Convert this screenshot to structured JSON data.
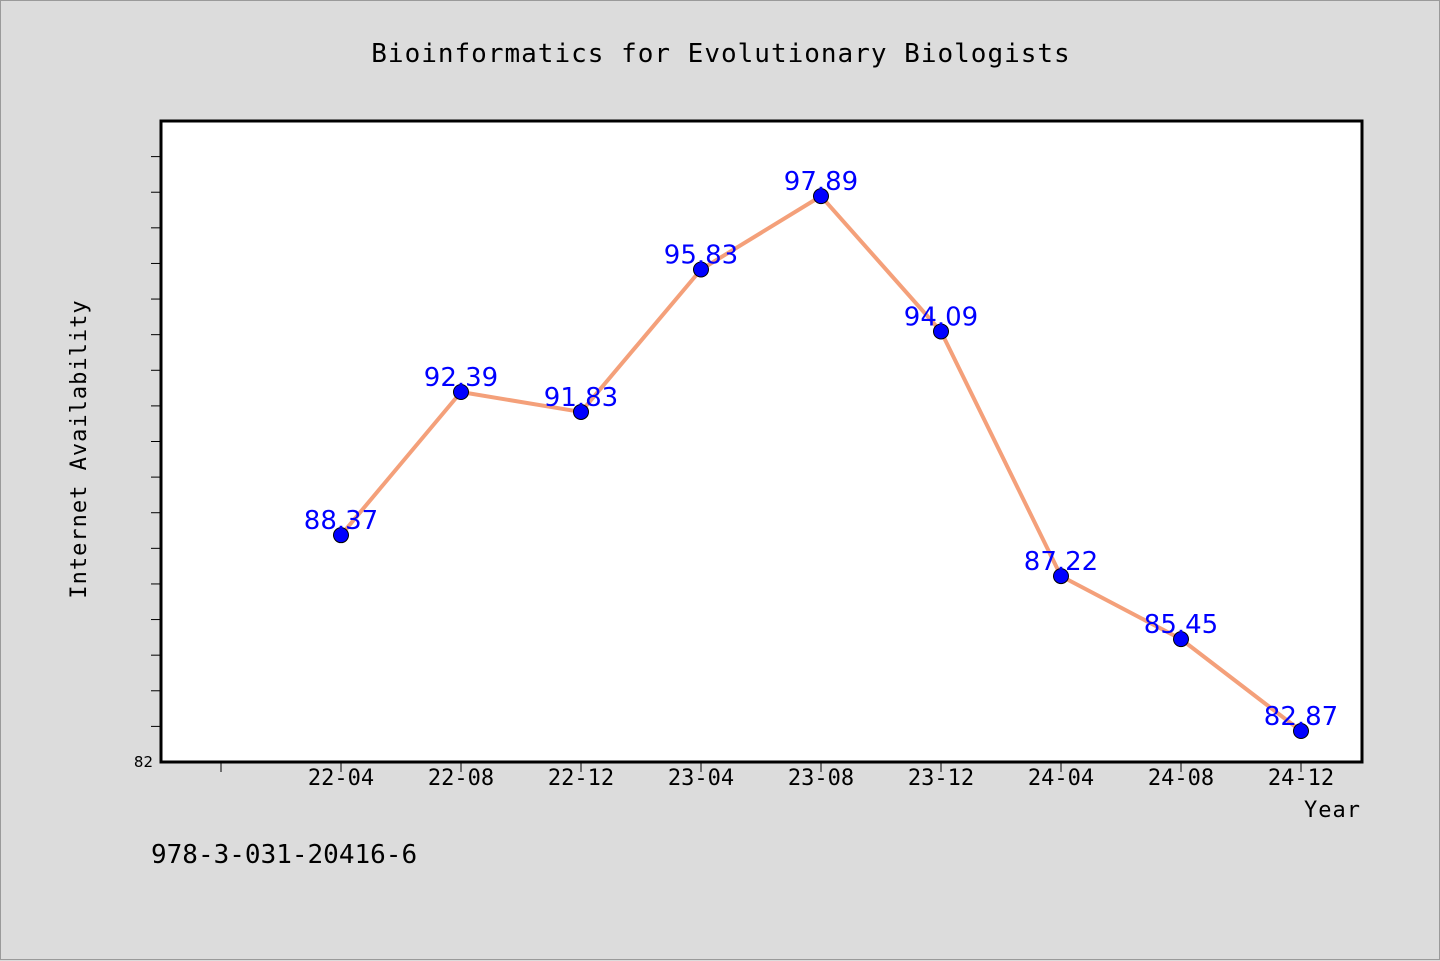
{
  "chart_data": {
    "type": "line",
    "title": "Bioinformatics for Evolutionary Biologists",
    "xlabel": "Year",
    "ylabel": "Internet Availability",
    "categories": [
      "22-04",
      "22-08",
      "22-12",
      "23-04",
      "23-08",
      "23-12",
      "24-04",
      "24-08",
      "24-12"
    ],
    "values": [
      88.37,
      92.39,
      91.83,
      95.83,
      97.89,
      94.09,
      87.22,
      85.45,
      82.87
    ],
    "data_labels": [
      "88.37",
      "92.39",
      "91.83",
      "95.83",
      "97.89",
      "94.09",
      "87.22",
      "85.45",
      "82.87"
    ],
    "ylim": [
      82,
      100
    ],
    "y_min_tick_label": "82",
    "grid": false,
    "line_color": "#f4a07a",
    "marker_color": "#0000ff",
    "label_color": "#0000ff"
  },
  "footer": {
    "isbn": "978-3-031-20416-6"
  }
}
